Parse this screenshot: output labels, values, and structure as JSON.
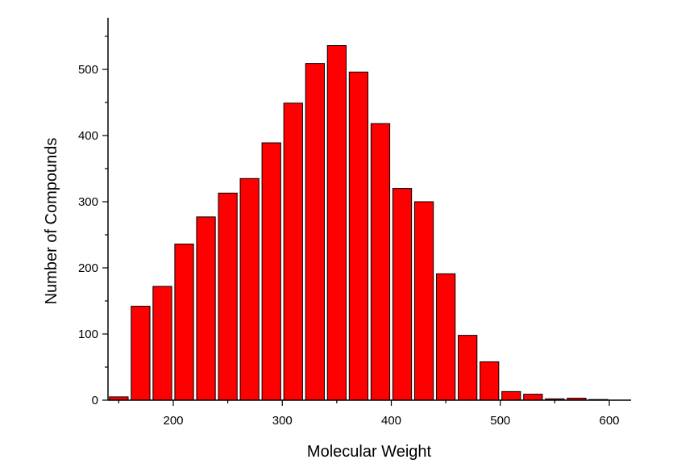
{
  "chart_data": {
    "type": "bar",
    "title": "",
    "xlabel": "Molecular Weight",
    "ylabel": "Number of Compounds",
    "xlim": [
      140,
      620
    ],
    "ylim": [
      0,
      580
    ],
    "x_ticks": [
      200,
      300,
      400,
      500,
      600
    ],
    "y_ticks": [
      0,
      100,
      200,
      300,
      400,
      500
    ],
    "bin_width": 20,
    "x": [
      150,
      170,
      190,
      210,
      230,
      250,
      270,
      290,
      310,
      330,
      350,
      370,
      390,
      410,
      430,
      450,
      470,
      490,
      510,
      530,
      550,
      570,
      590
    ],
    "values": [
      5,
      142,
      172,
      236,
      277,
      313,
      335,
      389,
      449,
      509,
      536,
      496,
      418,
      320,
      300,
      191,
      98,
      58,
      13,
      9,
      2,
      3,
      1
    ],
    "bar_color": "#ff0000",
    "grid": false,
    "legend": "none"
  }
}
